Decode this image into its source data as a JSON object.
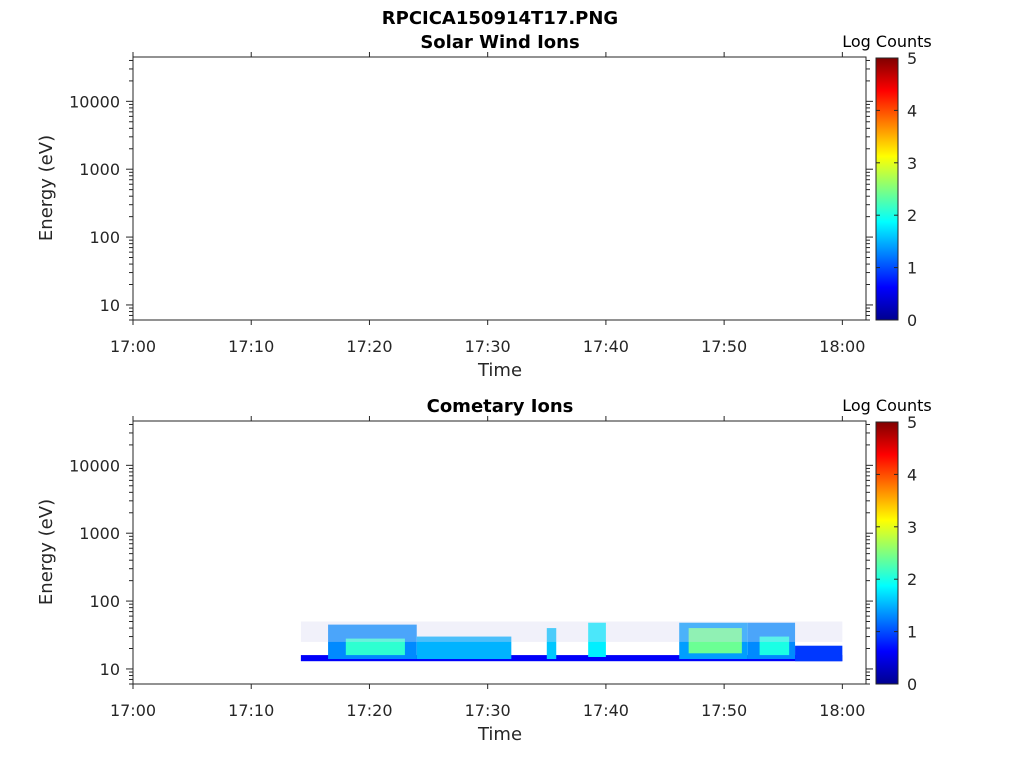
{
  "figure": {
    "title": "RPCICA150914T17.PNG"
  },
  "chart_data": [
    {
      "type": "heatmap",
      "title": "Solar Wind Ions",
      "xlabel": "Time",
      "ylabel": "Energy (eV)",
      "x_tick_labels": [
        "17:00",
        "17:10",
        "17:20",
        "17:30",
        "17:40",
        "17:50",
        "18:00"
      ],
      "x_range_minutes": [
        0,
        62
      ],
      "y_tick_labels": [
        "10",
        "100",
        "1000",
        "10000"
      ],
      "y_scale": "log",
      "y_range": [
        6,
        45000
      ],
      "colorbar": {
        "label": "Log Counts",
        "range": [
          0,
          5
        ],
        "tick_labels": [
          "0",
          "1",
          "2",
          "3",
          "4",
          "5"
        ],
        "colormap": "jet"
      },
      "data_blobs": []
    },
    {
      "type": "heatmap",
      "title": "Cometary Ions",
      "xlabel": "Time",
      "ylabel": "Energy (eV)",
      "x_tick_labels": [
        "17:00",
        "17:10",
        "17:20",
        "17:30",
        "17:40",
        "17:50",
        "18:00"
      ],
      "x_range_minutes": [
        0,
        62
      ],
      "y_tick_labels": [
        "10",
        "100",
        "1000",
        "10000"
      ],
      "y_scale": "log",
      "y_range": [
        6,
        45000
      ],
      "colorbar": {
        "label": "Log Counts",
        "range": [
          0,
          5
        ],
        "tick_labels": [
          "0",
          "1",
          "2",
          "3",
          "4",
          "5"
        ],
        "colormap": "jet"
      },
      "data_extent_minutes": [
        14.2,
        60
      ],
      "data_energy_range_eV": [
        13,
        50
      ],
      "data_blobs": [
        {
          "t_start": 14.2,
          "t_end": 60,
          "e_lo": 13,
          "e_hi": 16,
          "level": 0.6
        },
        {
          "t_start": 16.5,
          "t_end": 24,
          "e_lo": 14,
          "e_hi": 45,
          "level": 1.3
        },
        {
          "t_start": 18,
          "t_end": 23,
          "e_lo": 16,
          "e_hi": 28,
          "level": 2.1
        },
        {
          "t_start": 24,
          "t_end": 32,
          "e_lo": 14,
          "e_hi": 30,
          "level": 1.5
        },
        {
          "t_start": 35,
          "t_end": 35.8,
          "e_lo": 14,
          "e_hi": 40,
          "level": 1.6
        },
        {
          "t_start": 38.5,
          "t_end": 40,
          "e_lo": 15,
          "e_hi": 48,
          "level": 1.8
        },
        {
          "t_start": 46.2,
          "t_end": 52,
          "e_lo": 14,
          "e_hi": 48,
          "level": 1.4
        },
        {
          "t_start": 47,
          "t_end": 51.5,
          "e_lo": 17,
          "e_hi": 40,
          "level": 2.4
        },
        {
          "t_start": 52,
          "t_end": 56,
          "e_lo": 14,
          "e_hi": 48,
          "level": 1.3
        },
        {
          "t_start": 53,
          "t_end": 55.5,
          "e_lo": 16,
          "e_hi": 30,
          "level": 2.0
        },
        {
          "t_start": 56,
          "t_end": 60,
          "e_lo": 13,
          "e_hi": 22,
          "level": 0.9
        },
        {
          "t_start": 14.2,
          "t_end": 60,
          "e_lo": 25,
          "e_hi": 50,
          "level": 0.15
        }
      ]
    }
  ]
}
